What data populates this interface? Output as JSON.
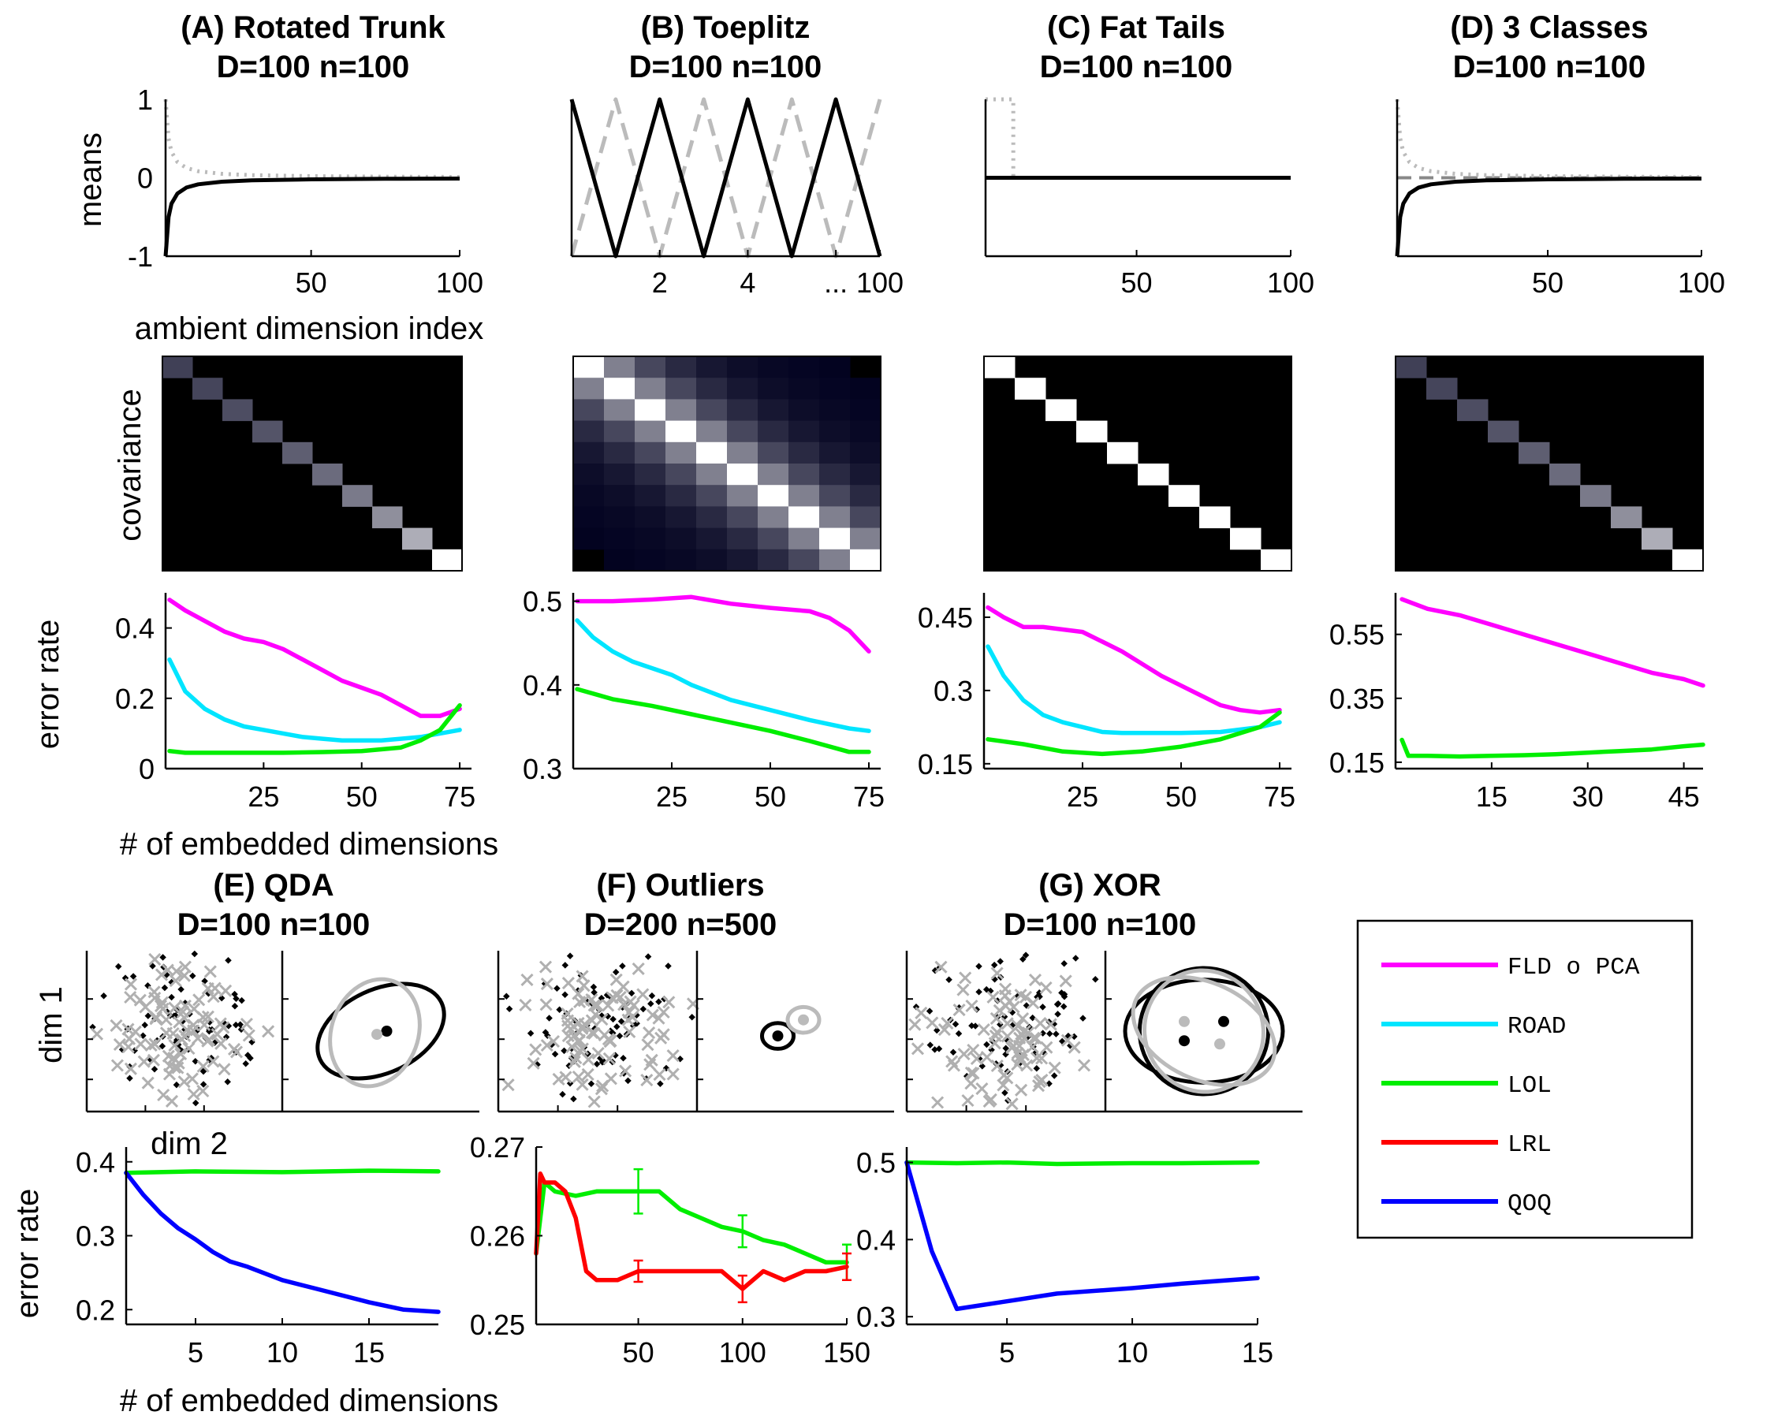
{
  "figure": {
    "panel_titles": [
      {
        "line1": "(A) Rotated Trunk",
        "line2": "D=100 n=100"
      },
      {
        "line1": "(B) Toeplitz",
        "line2": "D=100 n=100"
      },
      {
        "line1": "(C) Fat Tails",
        "line2": "D=100 n=100"
      },
      {
        "line1": "(D) 3 Classes",
        "line2": "D=100 n=100"
      },
      {
        "line1": "(E) QDA",
        "line2": "D=100 n=100"
      },
      {
        "line1": "(F) Outliers",
        "line2": "D=200 n=500"
      },
      {
        "line1": "(G) XOR",
        "line2": "D=100 n=100"
      }
    ],
    "row_labels": {
      "means": "means",
      "covariance": "covariance",
      "error_rate": "error rate",
      "dim1": "dim 1",
      "dim2": "dim 2"
    },
    "axis_labels": {
      "means_x": "ambient dimension index",
      "embedded": "# of embedded dimensions"
    },
    "legend": [
      {
        "label": "FLD o PCA",
        "color": "#ff00ff"
      },
      {
        "label": "ROAD",
        "color": "#00e5ff"
      },
      {
        "label": "LOL",
        "color": "#00ee00"
      },
      {
        "label": "LRL",
        "color": "#ff0000"
      },
      {
        "label": "QOQ",
        "color": "#0000ff"
      }
    ]
  },
  "chart_data": [
    {
      "id": "A-means",
      "type": "line",
      "xlim": [
        1,
        100
      ],
      "ylim": [
        -1,
        1
      ],
      "xticks": [
        50,
        100
      ],
      "yticks": [
        1,
        0,
        -1
      ],
      "series": [
        {
          "style": "solid-black",
          "x": [
            1,
            2,
            3,
            5,
            8,
            12,
            20,
            30,
            50,
            75,
            100
          ],
          "y": [
            -1,
            -0.5,
            -0.33,
            -0.2,
            -0.125,
            -0.083,
            -0.05,
            -0.033,
            -0.02,
            -0.013,
            -0.01
          ]
        },
        {
          "style": "dotted-gray",
          "x": [
            1,
            2,
            3,
            5,
            8,
            12,
            20,
            30,
            50,
            75,
            100
          ],
          "y": [
            1,
            0.5,
            0.33,
            0.2,
            0.125,
            0.083,
            0.05,
            0.033,
            0.02,
            0.013,
            0.01
          ]
        }
      ]
    },
    {
      "id": "B-means",
      "type": "line",
      "xlim": [
        0,
        7
      ],
      "ylim": [
        -1,
        1
      ],
      "xticks": [
        1,
        2,
        3,
        4,
        5,
        6,
        7
      ],
      "xtick_labels": [
        "",
        "2",
        "",
        "4",
        "",
        "...",
        "100"
      ],
      "series": [
        {
          "style": "solid-black",
          "x": [
            0,
            1,
            2,
            3,
            4,
            5,
            6,
            7
          ],
          "y": [
            1,
            -1,
            1,
            -1,
            1,
            -1,
            1,
            -1
          ]
        },
        {
          "style": "dashed-gray",
          "x": [
            0,
            1,
            2,
            3,
            4,
            5,
            6,
            7
          ],
          "y": [
            -1,
            1,
            -1,
            1,
            -1,
            1,
            -1,
            1
          ]
        }
      ]
    },
    {
      "id": "C-means",
      "type": "line",
      "xlim": [
        1,
        100
      ],
      "ylim": [
        -1,
        1
      ],
      "xticks": [
        50,
        100
      ],
      "series": [
        {
          "style": "solid-black",
          "x": [
            1,
            100
          ],
          "y": [
            0,
            0
          ]
        },
        {
          "style": "dotted-gray",
          "x": [
            1,
            10,
            10,
            100
          ],
          "y": [
            1,
            1,
            0,
            0
          ]
        }
      ]
    },
    {
      "id": "D-means",
      "type": "line",
      "xlim": [
        1,
        100
      ],
      "ylim": [
        -1,
        1
      ],
      "xticks": [
        50,
        100
      ],
      "series": [
        {
          "style": "solid-black",
          "x": [
            1,
            2,
            3,
            5,
            8,
            12,
            20,
            30,
            50,
            75,
            100
          ],
          "y": [
            -1,
            -0.5,
            -0.33,
            -0.2,
            -0.125,
            -0.083,
            -0.05,
            -0.033,
            -0.02,
            -0.013,
            -0.01
          ]
        },
        {
          "style": "dotted-gray",
          "x": [
            1,
            2,
            3,
            5,
            8,
            12,
            20,
            30,
            50,
            75,
            100
          ],
          "y": [
            1,
            0.5,
            0.33,
            0.2,
            0.125,
            0.083,
            0.05,
            0.033,
            0.02,
            0.013,
            0.01
          ]
        },
        {
          "style": "dashed-darkgray",
          "x": [
            1,
            100
          ],
          "y": [
            0,
            0
          ]
        }
      ]
    },
    {
      "id": "A-cov",
      "type": "heatmap",
      "size": 10,
      "pattern": "diagonal",
      "diagonal": [
        0.25,
        0.27,
        0.3,
        0.33,
        0.37,
        0.42,
        0.48,
        0.56,
        0.68,
        1.0
      ]
    },
    {
      "id": "B-cov",
      "type": "heatmap",
      "size": 10,
      "pattern": "toeplitz",
      "decay": [
        1.0,
        0.5,
        0.28,
        0.16,
        0.09,
        0.05,
        0.03,
        0.02,
        0.01,
        0.0
      ]
    },
    {
      "id": "C-cov",
      "type": "heatmap",
      "size": 10,
      "pattern": "diagonal",
      "diagonal": [
        1,
        1,
        1,
        1,
        1,
        1,
        1,
        1,
        1,
        1
      ]
    },
    {
      "id": "D-cov",
      "type": "heatmap",
      "size": 10,
      "pattern": "diagonal",
      "diagonal": [
        0.25,
        0.27,
        0.3,
        0.33,
        0.37,
        0.42,
        0.48,
        0.56,
        0.68,
        1.0
      ]
    },
    {
      "id": "A-error",
      "type": "line",
      "xlim": [
        0,
        78
      ],
      "ylim": [
        0,
        0.5
      ],
      "xticks": [
        25,
        50,
        75
      ],
      "yticks": [
        0,
        0.2,
        0.4
      ],
      "series": [
        {
          "name": "FLD o PCA",
          "x": [
            1,
            5,
            10,
            15,
            20,
            25,
            30,
            35,
            40,
            45,
            50,
            55,
            60,
            65,
            70,
            75
          ],
          "y": [
            0.48,
            0.45,
            0.42,
            0.39,
            0.37,
            0.36,
            0.34,
            0.31,
            0.28,
            0.25,
            0.23,
            0.21,
            0.18,
            0.15,
            0.15,
            0.17
          ]
        },
        {
          "name": "ROAD",
          "x": [
            1,
            5,
            10,
            15,
            20,
            25,
            30,
            35,
            40,
            45,
            50,
            55,
            60,
            65,
            70,
            75
          ],
          "y": [
            0.31,
            0.22,
            0.17,
            0.14,
            0.12,
            0.11,
            0.1,
            0.09,
            0.085,
            0.08,
            0.08,
            0.08,
            0.085,
            0.09,
            0.1,
            0.11
          ]
        },
        {
          "name": "LOL",
          "x": [
            1,
            5,
            10,
            20,
            30,
            40,
            50,
            60,
            65,
            70,
            75
          ],
          "y": [
            0.05,
            0.045,
            0.045,
            0.045,
            0.045,
            0.047,
            0.05,
            0.06,
            0.08,
            0.11,
            0.18
          ]
        }
      ]
    },
    {
      "id": "B-error",
      "type": "line",
      "xlim": [
        0,
        78
      ],
      "ylim": [
        0.3,
        0.51
      ],
      "xticks": [
        25,
        50,
        75
      ],
      "yticks": [
        0.3,
        0.4,
        0.5
      ],
      "series": [
        {
          "name": "FLD o PCA",
          "x": [
            1,
            10,
            20,
            30,
            40,
            50,
            60,
            65,
            70,
            75
          ],
          "y": [
            0.5,
            0.5,
            0.502,
            0.505,
            0.497,
            0.492,
            0.488,
            0.48,
            0.465,
            0.44
          ]
        },
        {
          "name": "ROAD",
          "x": [
            1,
            5,
            10,
            15,
            20,
            25,
            30,
            40,
            50,
            60,
            70,
            75
          ],
          "y": [
            0.477,
            0.457,
            0.44,
            0.428,
            0.42,
            0.412,
            0.4,
            0.382,
            0.37,
            0.358,
            0.348,
            0.345
          ]
        },
        {
          "name": "LOL",
          "x": [
            1,
            10,
            20,
            30,
            40,
            50,
            60,
            70,
            75
          ],
          "y": [
            0.395,
            0.383,
            0.375,
            0.365,
            0.355,
            0.345,
            0.333,
            0.32,
            0.32
          ]
        }
      ]
    },
    {
      "id": "C-error",
      "type": "line",
      "xlim": [
        0,
        78
      ],
      "ylim": [
        0.14,
        0.5
      ],
      "xticks": [
        25,
        50,
        75
      ],
      "yticks": [
        0.15,
        0.3,
        0.45
      ],
      "series": [
        {
          "name": "FLD o PCA",
          "x": [
            1,
            5,
            10,
            15,
            20,
            25,
            30,
            35,
            40,
            45,
            50,
            55,
            60,
            65,
            70,
            75
          ],
          "y": [
            0.47,
            0.45,
            0.43,
            0.43,
            0.425,
            0.42,
            0.4,
            0.38,
            0.355,
            0.33,
            0.31,
            0.29,
            0.27,
            0.26,
            0.255,
            0.26
          ]
        },
        {
          "name": "ROAD",
          "x": [
            1,
            5,
            10,
            15,
            20,
            25,
            30,
            35,
            40,
            50,
            60,
            70,
            75
          ],
          "y": [
            0.39,
            0.33,
            0.28,
            0.25,
            0.235,
            0.225,
            0.215,
            0.213,
            0.213,
            0.213,
            0.215,
            0.225,
            0.235
          ]
        },
        {
          "name": "LOL",
          "x": [
            1,
            10,
            20,
            30,
            40,
            50,
            60,
            70,
            75
          ],
          "y": [
            0.2,
            0.19,
            0.175,
            0.17,
            0.175,
            0.185,
            0.2,
            0.225,
            0.255
          ]
        }
      ]
    },
    {
      "id": "D-error",
      "type": "line",
      "xlim": [
        0,
        48
      ],
      "ylim": [
        0.13,
        0.68
      ],
      "xticks": [
        15,
        30,
        45
      ],
      "yticks": [
        0.15,
        0.35,
        0.55
      ],
      "series": [
        {
          "name": "FLD o PCA",
          "x": [
            1,
            5,
            10,
            15,
            20,
            25,
            30,
            35,
            40,
            45,
            48
          ],
          "y": [
            0.66,
            0.63,
            0.61,
            0.58,
            0.55,
            0.52,
            0.49,
            0.46,
            0.43,
            0.41,
            0.39
          ]
        },
        {
          "name": "LOL",
          "x": [
            1,
            2,
            5,
            10,
            15,
            20,
            25,
            30,
            35,
            40,
            45,
            48
          ],
          "y": [
            0.22,
            0.17,
            0.17,
            0.168,
            0.17,
            0.172,
            0.175,
            0.18,
            0.185,
            0.19,
            0.2,
            0.205
          ]
        }
      ]
    },
    {
      "id": "E-error",
      "type": "line",
      "xlim": [
        1,
        19
      ],
      "ylim": [
        0.18,
        0.42
      ],
      "xticks": [
        5,
        10,
        15
      ],
      "yticks": [
        0.2,
        0.3,
        0.4
      ],
      "series": [
        {
          "name": "LOL",
          "x": [
            1,
            5,
            10,
            15,
            19
          ],
          "y": [
            0.385,
            0.387,
            0.386,
            0.388,
            0.387
          ]
        },
        {
          "name": "QOQ",
          "x": [
            1,
            2,
            3,
            4,
            5,
            6,
            7,
            8,
            10,
            12,
            15,
            17,
            19
          ],
          "y": [
            0.385,
            0.355,
            0.33,
            0.31,
            0.295,
            0.278,
            0.265,
            0.258,
            0.24,
            0.228,
            0.21,
            0.2,
            0.197
          ]
        }
      ]
    },
    {
      "id": "F-error",
      "type": "line",
      "xlim": [
        1,
        150
      ],
      "ylim": [
        0.25,
        0.27
      ],
      "xticks": [
        50,
        100,
        150
      ],
      "yticks": [
        0.25,
        0.26,
        0.27
      ],
      "series": [
        {
          "name": "LOL",
          "x": [
            1,
            5,
            10,
            20,
            30,
            40,
            50,
            60,
            70,
            80,
            90,
            100,
            110,
            120,
            130,
            140,
            150
          ],
          "y": [
            0.258,
            0.266,
            0.265,
            0.2645,
            0.265,
            0.265,
            0.265,
            0.265,
            0.263,
            0.262,
            0.261,
            0.2605,
            0.2595,
            0.259,
            0.258,
            0.257,
            0.257
          ]
        },
        {
          "name": "LRL",
          "x": [
            1,
            3,
            5,
            10,
            15,
            20,
            25,
            30,
            40,
            50,
            60,
            70,
            80,
            90,
            100,
            110,
            120,
            130,
            140,
            150
          ],
          "y": [
            0.258,
            0.267,
            0.266,
            0.266,
            0.265,
            0.262,
            0.256,
            0.255,
            0.255,
            0.256,
            0.256,
            0.256,
            0.256,
            0.256,
            0.254,
            0.256,
            0.255,
            0.256,
            0.256,
            0.2565
          ]
        }
      ],
      "errorbars": [
        {
          "series": "LOL",
          "x": 50,
          "y": 0.265,
          "err": 0.0025
        },
        {
          "series": "LOL",
          "x": 100,
          "y": 0.2605,
          "err": 0.0018
        },
        {
          "series": "LOL",
          "x": 150,
          "y": 0.257,
          "err": 0.002
        },
        {
          "series": "LRL",
          "x": 50,
          "y": 0.256,
          "err": 0.0012
        },
        {
          "series": "LRL",
          "x": 100,
          "y": 0.254,
          "err": 0.0015
        },
        {
          "series": "LRL",
          "x": 150,
          "y": 0.2565,
          "err": 0.0015
        }
      ]
    },
    {
      "id": "G-error",
      "type": "line",
      "xlim": [
        1,
        15
      ],
      "ylim": [
        0.29,
        0.52
      ],
      "xticks": [
        5,
        10,
        15
      ],
      "yticks": [
        0.3,
        0.4,
        0.5
      ],
      "series": [
        {
          "name": "LOL",
          "x": [
            1,
            3,
            5,
            7,
            10,
            12,
            15
          ],
          "y": [
            0.5,
            0.499,
            0.5,
            0.498,
            0.499,
            0.499,
            0.5
          ]
        },
        {
          "name": "QOQ",
          "x": [
            1,
            2,
            3,
            4,
            5,
            7,
            10,
            12,
            15
          ],
          "y": [
            0.5,
            0.385,
            0.31,
            0.315,
            0.32,
            0.33,
            0.337,
            0.343,
            0.35
          ]
        }
      ]
    }
  ]
}
